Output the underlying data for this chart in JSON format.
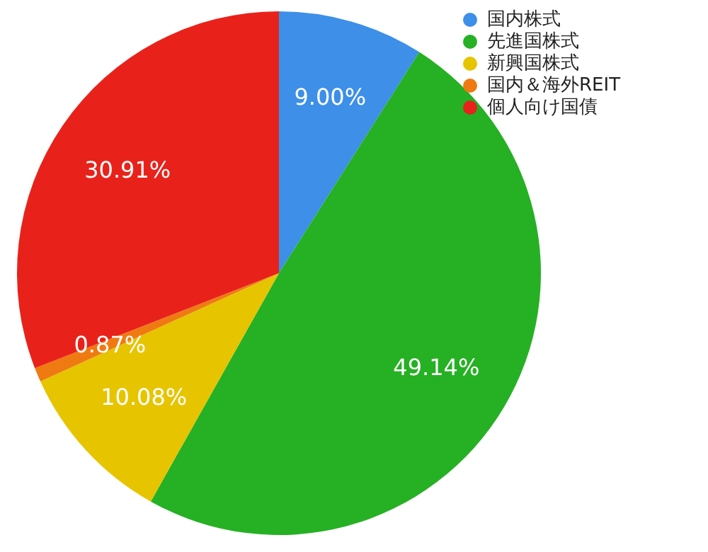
{
  "chart_data": {
    "type": "pie",
    "categories": [
      "国内株式",
      "先進国株式",
      "新興国株式",
      "国内＆海外REIT",
      "個人向け国債"
    ],
    "values": [
      9.0,
      49.14,
      10.08,
      0.87,
      30.91
    ],
    "colors": [
      "#3d8fe8",
      "#26b024",
      "#e6c400",
      "#f07a12",
      "#e8221a"
    ],
    "value_labels": [
      "9.00%",
      "49.14%",
      "10.08%",
      "0.87%",
      "30.91%"
    ],
    "legend": "top right"
  }
}
